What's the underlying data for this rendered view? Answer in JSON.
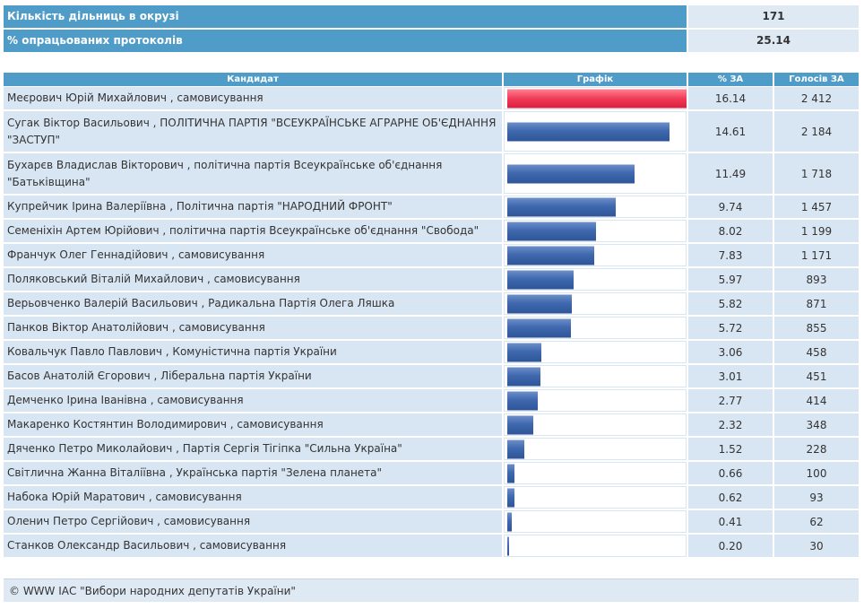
{
  "summary": {
    "stations_label": "Кількість дільниць в окрузі",
    "stations_value": "171",
    "processed_label": "% опрацьованих протоколів",
    "processed_value": "25.14"
  },
  "table": {
    "headers": {
      "candidate": "Кандидат",
      "graph": "Графік",
      "pct": "% ЗА",
      "votes": "Голосів ЗА"
    },
    "rows": [
      {
        "name": "Меєрович Юрій Михайлович , самовисування",
        "pct": "16.14",
        "votes": "2 412",
        "share": 16.14
      },
      {
        "name": "Сугак Віктор Васильович , ПОЛІТИЧНА ПАРТІЯ \"ВСЕУКРАЇНСЬКЕ АГРАРНЕ ОБ'ЄДНАННЯ \"ЗАСТУП\"",
        "pct": "14.61",
        "votes": "2 184",
        "share": 14.61
      },
      {
        "name": "Бухарєв Владислав Вікторович , політична партія Всеукраїнське об'єднання \"Батьківщина\"",
        "pct": "11.49",
        "votes": "1 718",
        "share": 11.49
      },
      {
        "name": "Купрейчик Ірина Валеріївна , Політична партія \"НАРОДНИЙ ФРОНТ\"",
        "pct": "9.74",
        "votes": "1 457",
        "share": 9.74
      },
      {
        "name": "Семеніхін Артем Юрійович , політична партія Всеукраїнське об'єднання \"Свобода\"",
        "pct": "8.02",
        "votes": "1 199",
        "share": 8.02
      },
      {
        "name": "Франчук Олег Геннадійович , самовисування",
        "pct": "7.83",
        "votes": "1 171",
        "share": 7.83
      },
      {
        "name": "Поляковський Віталій Михайлович , самовисування",
        "pct": "5.97",
        "votes": "893",
        "share": 5.97
      },
      {
        "name": "Верьовченко Валерій Васильович , Радикальна Партія Олега Ляшка",
        "pct": "5.82",
        "votes": "871",
        "share": 5.82
      },
      {
        "name": "Панков Віктор Анатолійович , самовисування",
        "pct": "5.72",
        "votes": "855",
        "share": 5.72
      },
      {
        "name": "Ковальчук Павло Павлович , Комуністична партія України",
        "pct": "3.06",
        "votes": "458",
        "share": 3.06
      },
      {
        "name": "Басов Анатолій Єгорович , Ліберальна партія України",
        "pct": "3.01",
        "votes": "451",
        "share": 3.01
      },
      {
        "name": "Демченко Ірина Іванівна , самовисування",
        "pct": "2.77",
        "votes": "414",
        "share": 2.77
      },
      {
        "name": "Макаренко Костянтин Володимирович , самовисування",
        "pct": "2.32",
        "votes": "348",
        "share": 2.32
      },
      {
        "name": "Дяченко Петро Миколайович , Партія Сергія Тігіпка \"Сильна Україна\"",
        "pct": "1.52",
        "votes": "228",
        "share": 1.52
      },
      {
        "name": "Світлична Жанна Віталіївна , Українська партія \"Зелена планета\"",
        "pct": "0.66",
        "votes": "100",
        "share": 0.66
      },
      {
        "name": "Набока Юрій Маратович , самовисування",
        "pct": "0.62",
        "votes": "93",
        "share": 0.62
      },
      {
        "name": "Оленич Петро Сергійович , самовисування",
        "pct": "0.41",
        "votes": "62",
        "share": 0.41
      },
      {
        "name": "Станков Олександр Васильович , самовисування",
        "pct": "0.20",
        "votes": "30",
        "share": 0.2
      }
    ]
  },
  "colors": {
    "header": "#4f9cc8",
    "cell": "#d8e5f2",
    "bar": "#3f68ae",
    "bar_top": "#f03a56"
  },
  "footer": {
    "text": "© WWW ІАС \"Вибори народних депутатів України\""
  }
}
